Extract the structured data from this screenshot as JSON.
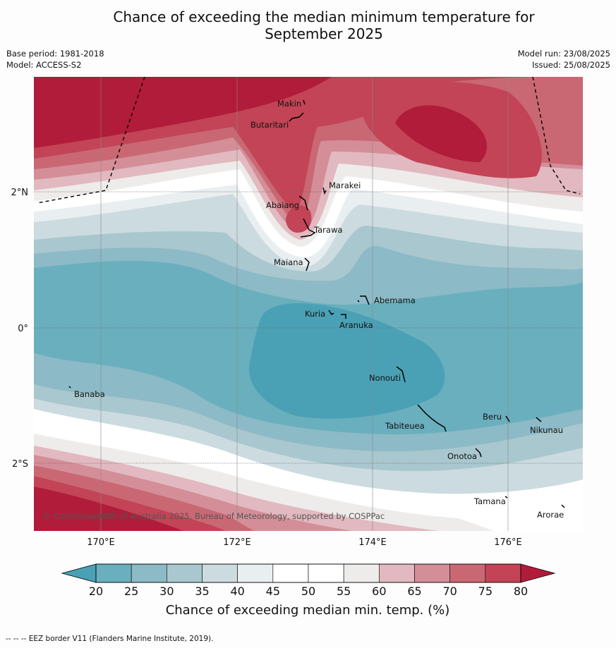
{
  "title_line1": "Chance of exceeding the median minimum temperature for",
  "title_line2": "September 2025",
  "base_period": "Base period: 1981-2018",
  "model": "Model: ACCESS-S2",
  "model_run": "Model run: 23/08/2025",
  "issued": "Issued: 25/08/2025",
  "map": {
    "lat_labels": [
      "2°N",
      "0°",
      "2°S"
    ],
    "lon_labels": [
      "170°E",
      "172°E",
      "174°E",
      "176°E"
    ],
    "places": [
      "Makin",
      "Butaritari",
      "Marakei",
      "Abaiang",
      "Tarawa",
      "Maiana",
      "Abemama",
      "Kuria",
      "Aranuka",
      "Nonouti",
      "Banaba",
      "Beru",
      "Tabiteuea",
      "Nikunau",
      "Onotoa",
      "Tamana",
      "Arorae"
    ],
    "copyright": "© Commonwealth of Australia 2025, Bureau of Meteorology, supported by COSPPac"
  },
  "colorbar": {
    "ticks": [
      "20",
      "25",
      "30",
      "35",
      "40",
      "45",
      "50",
      "55",
      "60",
      "65",
      "70",
      "75",
      "80"
    ],
    "colors": [
      "#6aafbd",
      "#8cbac6",
      "#a9c7ce",
      "#ccdbe0",
      "#e9eff1",
      "#ffffff",
      "#ffffff",
      "#eeeceb",
      "#e2b9c0",
      "#d48e98",
      "#c96873",
      "#c24456"
    ],
    "low_color": "#4aa1b5",
    "high_color": "#b11c3a",
    "label": "Chance of exceeding median min. temp. (%)"
  },
  "footnote": "--  --  -- EEZ border V11 (Flanders Marine Institute, 2019)."
}
